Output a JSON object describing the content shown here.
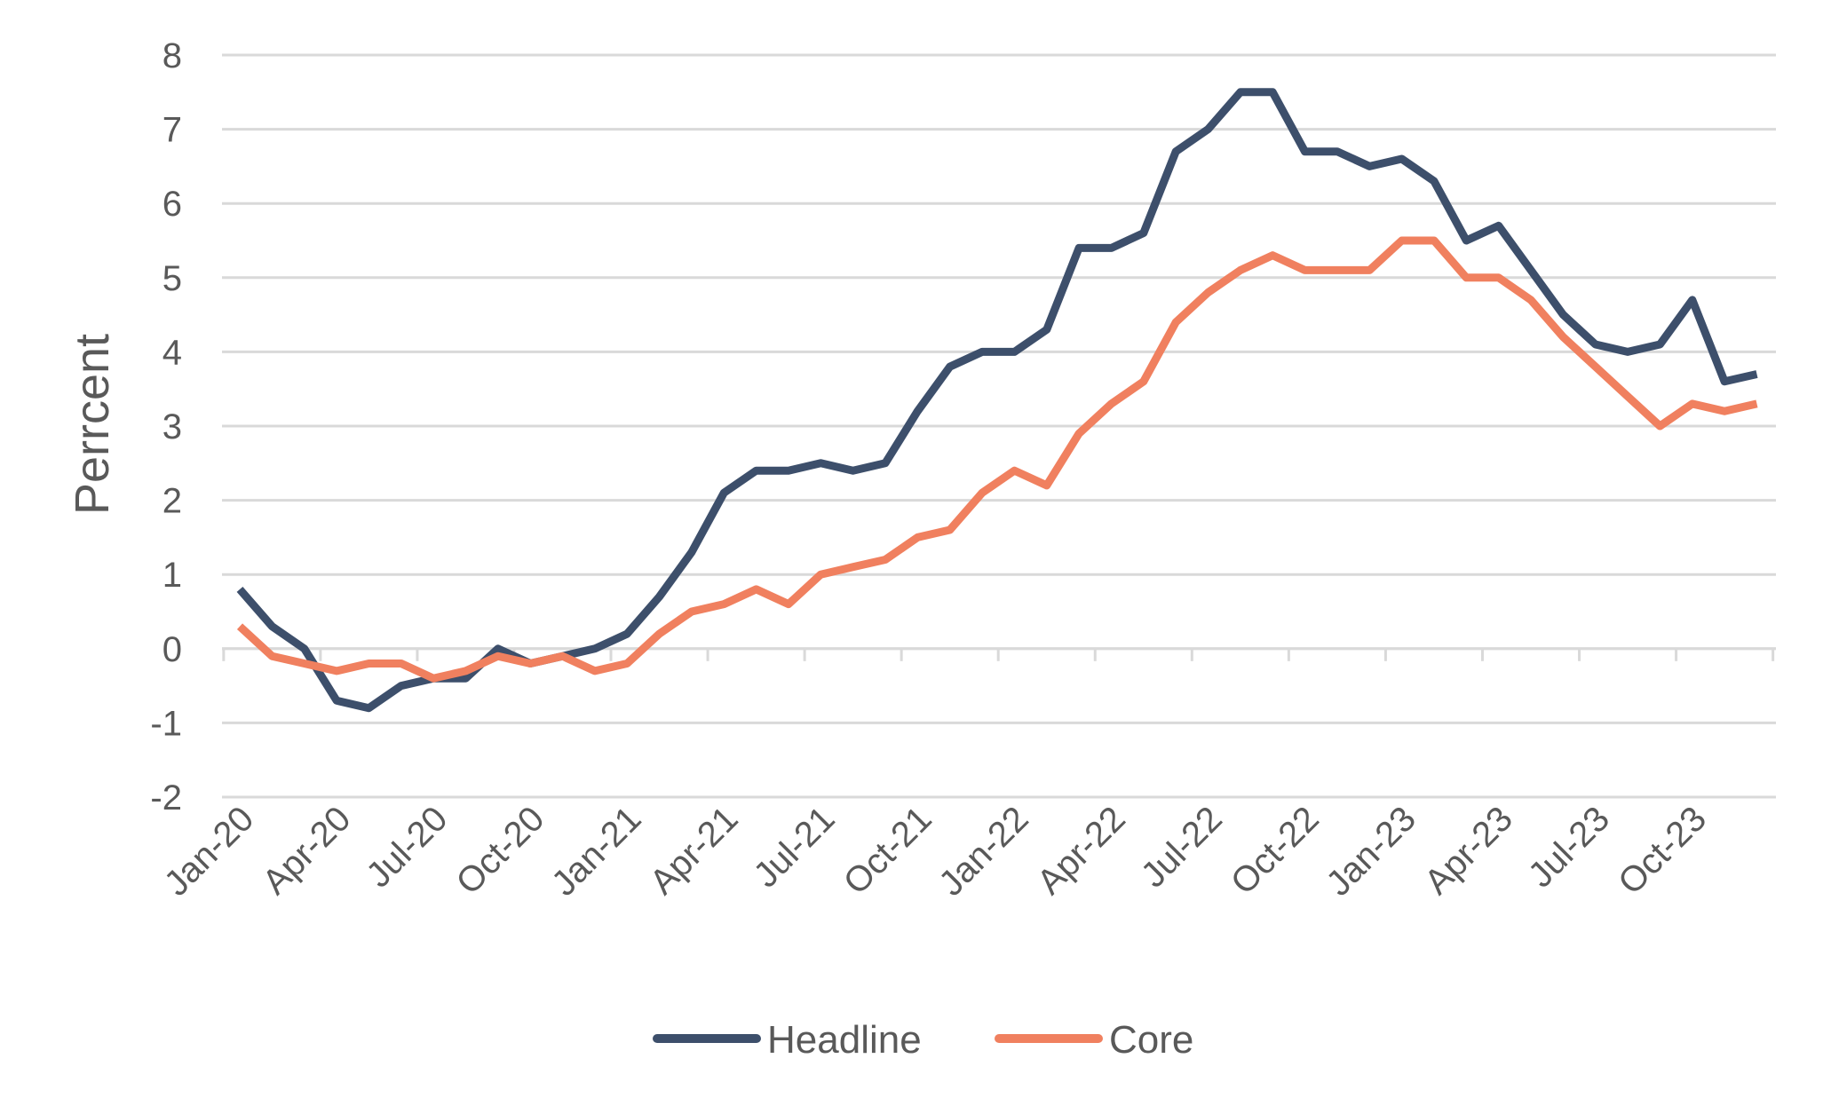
{
  "chart_data": {
    "type": "line",
    "title": "",
    "xlabel": "",
    "ylabel": "Perrcent",
    "ylim": [
      -2,
      8
    ],
    "yticks": [
      -2,
      -1,
      0,
      1,
      2,
      3,
      4,
      5,
      6,
      7,
      8
    ],
    "grid": true,
    "legend_position": "bottom",
    "x": [
      "Jan-20",
      "Feb-20",
      "Mar-20",
      "Apr-20",
      "May-20",
      "Jun-20",
      "Jul-20",
      "Aug-20",
      "Sep-20",
      "Oct-20",
      "Nov-20",
      "Dec-20",
      "Jan-21",
      "Feb-21",
      "Mar-21",
      "Apr-21",
      "May-21",
      "Jun-21",
      "Jul-21",
      "Aug-21",
      "Sep-21",
      "Oct-21",
      "Nov-21",
      "Dec-21",
      "Jan-22",
      "Feb-22",
      "Mar-22",
      "Apr-22",
      "May-22",
      "Jun-22",
      "Jul-22",
      "Aug-22",
      "Sep-22",
      "Oct-22",
      "Nov-22",
      "Dec-22",
      "Jan-23",
      "Feb-23",
      "Mar-23",
      "Apr-23",
      "May-23",
      "Jun-23",
      "Jul-23",
      "Aug-23",
      "Sep-23",
      "Oct-23",
      "Nov-23",
      "Dec-23"
    ],
    "xtick_labels": [
      "Jan-20",
      "Apr-20",
      "Jul-20",
      "Oct-20",
      "Jan-21",
      "Apr-21",
      "Jul-21",
      "Oct-21",
      "Jan-22",
      "Apr-22",
      "Jul-22",
      "Oct-22",
      "Jan-23",
      "Apr-23",
      "Jul-23",
      "Oct-23"
    ],
    "series": [
      {
        "name": "Headline",
        "color": "#3d4f6b",
        "values": [
          0.8,
          0.3,
          0.0,
          -0.7,
          -0.8,
          -0.5,
          -0.4,
          -0.4,
          0.0,
          -0.2,
          -0.1,
          0.0,
          0.2,
          0.7,
          1.3,
          2.1,
          2.4,
          2.4,
          2.5,
          2.4,
          2.5,
          3.2,
          3.8,
          4.0,
          4.0,
          4.3,
          5.4,
          5.4,
          5.6,
          6.7,
          7.0,
          7.5,
          7.5,
          6.7,
          6.7,
          6.5,
          6.6,
          6.3,
          5.5,
          5.7,
          5.1,
          4.5,
          4.1,
          4.0,
          4.1,
          4.7,
          3.6,
          3.7
        ]
      },
      {
        "name": "Core",
        "color": "#f0805f",
        "values": [
          0.3,
          -0.1,
          -0.2,
          -0.3,
          -0.2,
          -0.2,
          -0.4,
          -0.3,
          -0.1,
          -0.2,
          -0.1,
          -0.3,
          -0.2,
          0.2,
          0.5,
          0.6,
          0.8,
          0.6,
          1.0,
          1.1,
          1.2,
          1.5,
          1.6,
          2.1,
          2.4,
          2.2,
          2.9,
          3.3,
          3.6,
          4.4,
          4.8,
          5.1,
          5.3,
          5.1,
          5.1,
          5.1,
          5.5,
          5.5,
          5.0,
          5.0,
          4.7,
          4.2,
          3.8,
          3.4,
          3.0,
          3.3,
          3.2,
          3.3
        ]
      }
    ]
  }
}
